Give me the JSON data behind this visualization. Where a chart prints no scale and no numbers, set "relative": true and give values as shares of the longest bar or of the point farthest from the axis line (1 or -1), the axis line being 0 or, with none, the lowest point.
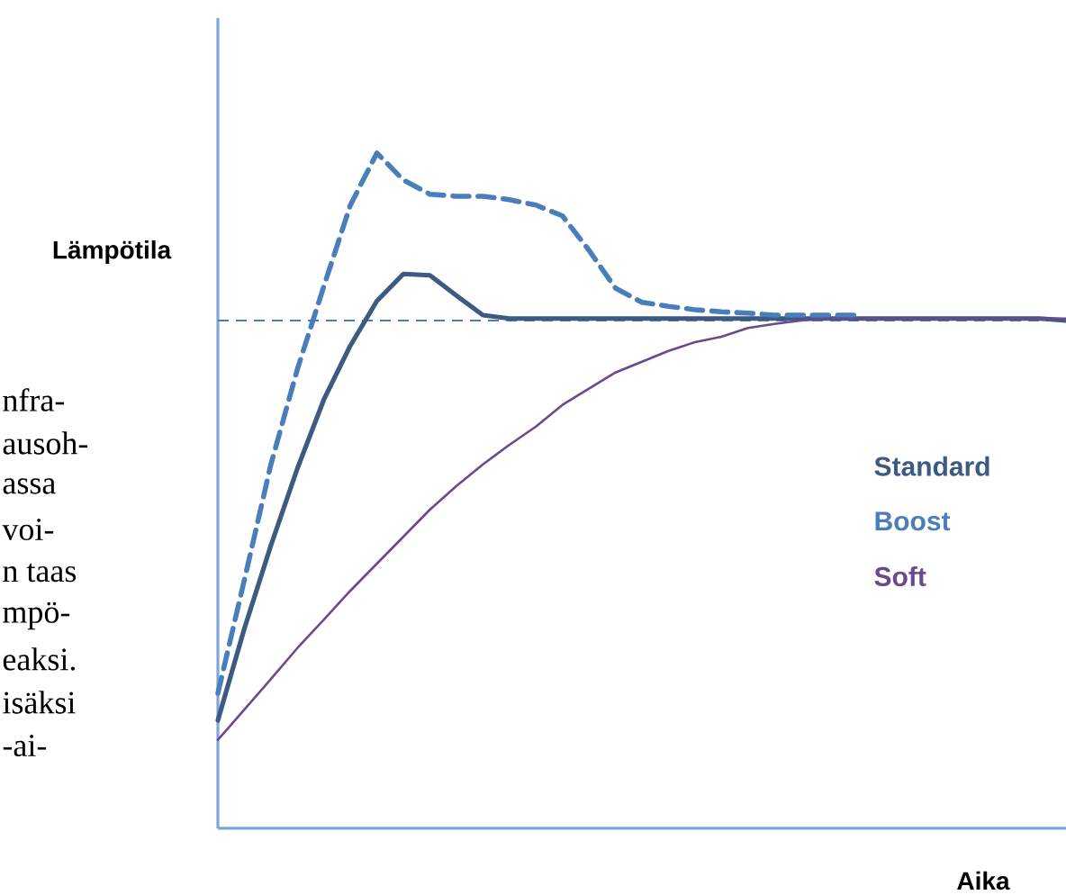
{
  "chart_data": {
    "type": "line",
    "relative": true,
    "ylabel": "Lämpötila",
    "xlabel": "Aika",
    "legend": "right",
    "categories": [
      null,
      null,
      null,
      null,
      null,
      null,
      null,
      null,
      null,
      null,
      null,
      null,
      null,
      null,
      null,
      null,
      null,
      null,
      null,
      null,
      null,
      null,
      null,
      null,
      null,
      null,
      null,
      null,
      null,
      null,
      null,
      null,
      null
    ],
    "series": [
      {
        "name": "Standard",
        "color": "#3d5a80",
        "values": [
          0.16,
          0.296,
          0.419,
          0.533,
          0.635,
          0.715,
          0.781,
          0.821,
          0.819,
          0.789,
          0.76,
          0.755,
          0.755,
          0.755,
          0.755,
          0.755,
          0.755,
          0.755,
          0.755,
          0.755,
          0.755,
          0.755,
          0.755,
          0.755,
          0.755,
          0.755,
          0.755,
          0.755,
          0.755,
          0.755,
          0.755,
          0.755,
          0.752
        ]
      },
      {
        "name": "Boost",
        "color": "#4a7ebb",
        "line_style": "dashed",
        "values": [
          0.2,
          0.368,
          0.539,
          0.68,
          0.803,
          0.923,
          1.0,
          0.96,
          0.939,
          0.936,
          0.936,
          0.931,
          0.923,
          0.907,
          0.856,
          0.8,
          0.779,
          0.773,
          0.768,
          0.765,
          0.763,
          0.76,
          0.76,
          0.76,
          0.76,
          null,
          null,
          null,
          null,
          null,
          null,
          null,
          null
        ]
      },
      {
        "name": "Soft",
        "color": "#6a4a8c",
        "values": [
          0.131,
          0.176,
          0.221,
          0.267,
          0.309,
          0.352,
          0.392,
          0.432,
          0.472,
          0.507,
          0.539,
          0.568,
          0.595,
          0.627,
          0.651,
          0.675,
          0.691,
          0.707,
          0.72,
          0.728,
          0.741,
          0.747,
          0.752,
          0.755,
          0.755,
          0.755,
          0.755,
          0.755,
          0.755,
          0.755,
          0.755,
          0.755,
          0.755
        ]
      }
    ],
    "ref_lines": [
      {
        "axis": "y",
        "value": 0.752,
        "color": "#4a7ebb",
        "line_style": "dashed"
      }
    ],
    "annotations": [
      "nfra-",
      "ausoh-",
      "assa",
      "voi-",
      "n taas",
      "mpö-",
      "eaksi.",
      "isäksi",
      "-ai-"
    ]
  }
}
